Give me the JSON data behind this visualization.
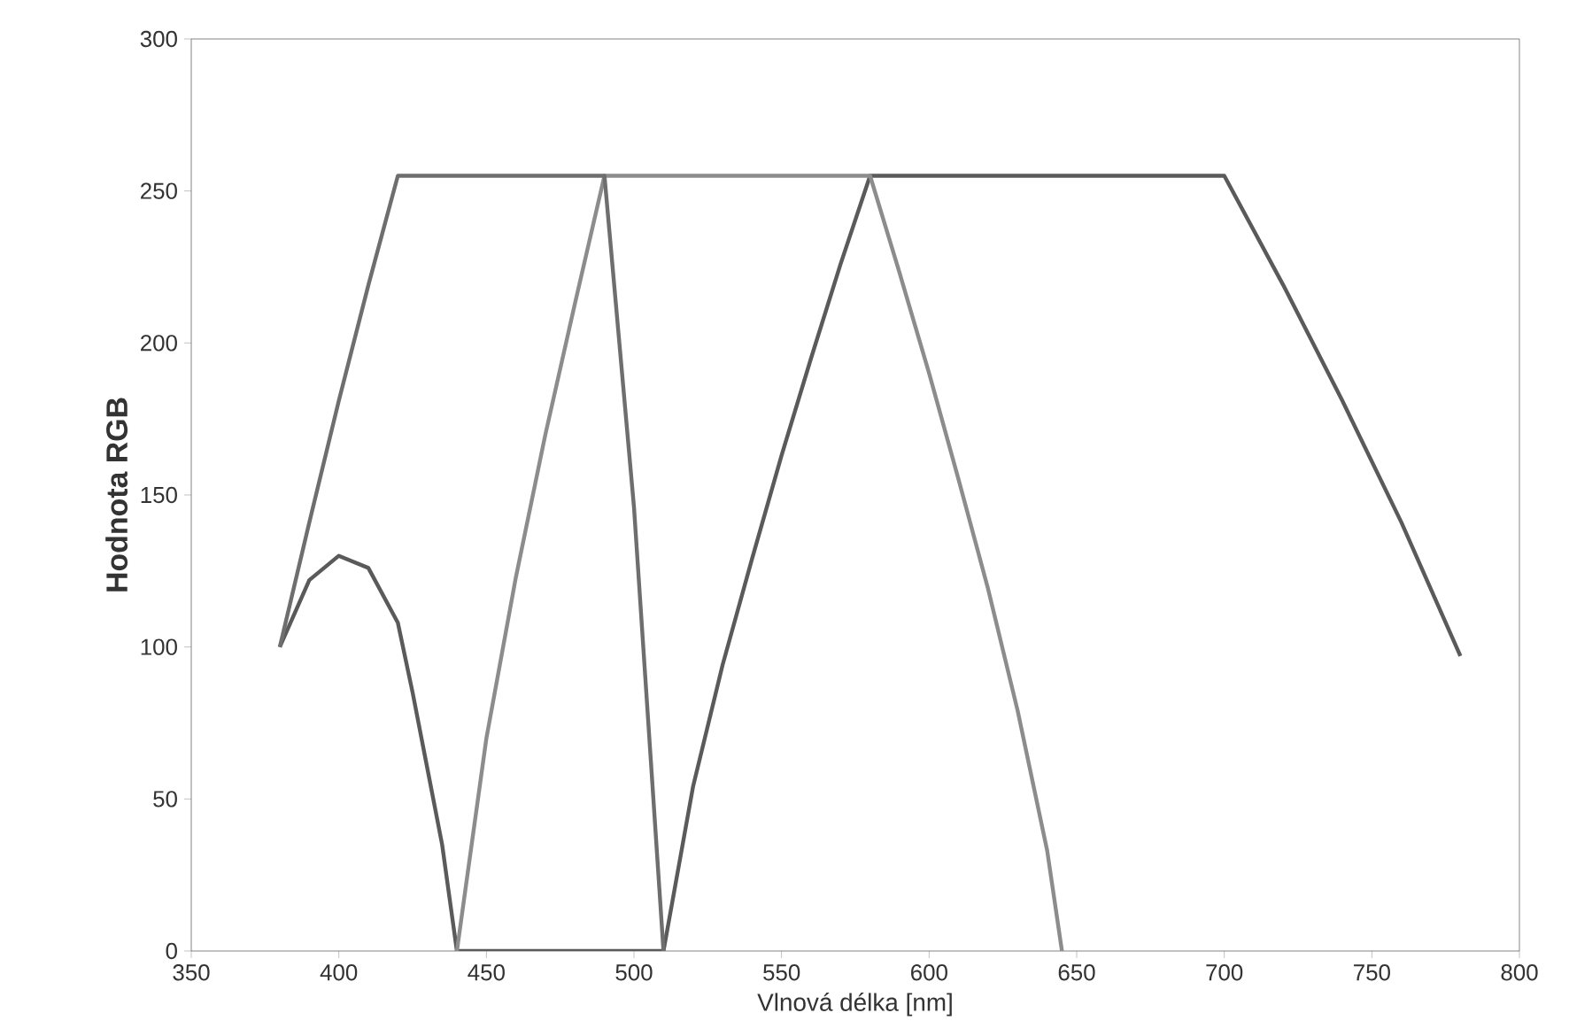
{
  "chart_data": {
    "type": "line",
    "xlabel": "Vlnová délka [nm]",
    "ylabel": "Hodnota RGB",
    "xlim": [
      350,
      800
    ],
    "ylim": [
      0,
      300
    ],
    "xticks": [
      350,
      400,
      450,
      500,
      550,
      600,
      650,
      700,
      750,
      800
    ],
    "yticks": [
      0,
      50,
      100,
      150,
      200,
      250,
      300
    ],
    "grid": false,
    "series": [
      {
        "color": "#5a5a5a",
        "x": [
          380,
          390,
          400,
          410,
          420,
          425,
          430,
          435,
          440,
          510,
          520,
          530,
          540,
          550,
          560,
          570,
          580,
          700,
          720,
          740,
          760,
          780
        ],
        "values": [
          100,
          122,
          130,
          126,
          108,
          85,
          60,
          35,
          0,
          0,
          54,
          94,
          129,
          163,
          195,
          226,
          255,
          255,
          219,
          181,
          141,
          97
        ]
      },
      {
        "color": "#8c8c8c",
        "x": [
          440,
          450,
          460,
          470,
          480,
          490,
          580,
          590,
          600,
          610,
          620,
          630,
          640,
          645
        ],
        "values": [
          0,
          70,
          123,
          170,
          213,
          255,
          255,
          223,
          190,
          155,
          119,
          79,
          33,
          0
        ]
      },
      {
        "color": "#6e6e6e",
        "x": [
          380,
          390,
          400,
          410,
          420,
          490,
          500,
          510
        ],
        "values": [
          100,
          141,
          181,
          219,
          255,
          255,
          146,
          0
        ]
      }
    ]
  }
}
